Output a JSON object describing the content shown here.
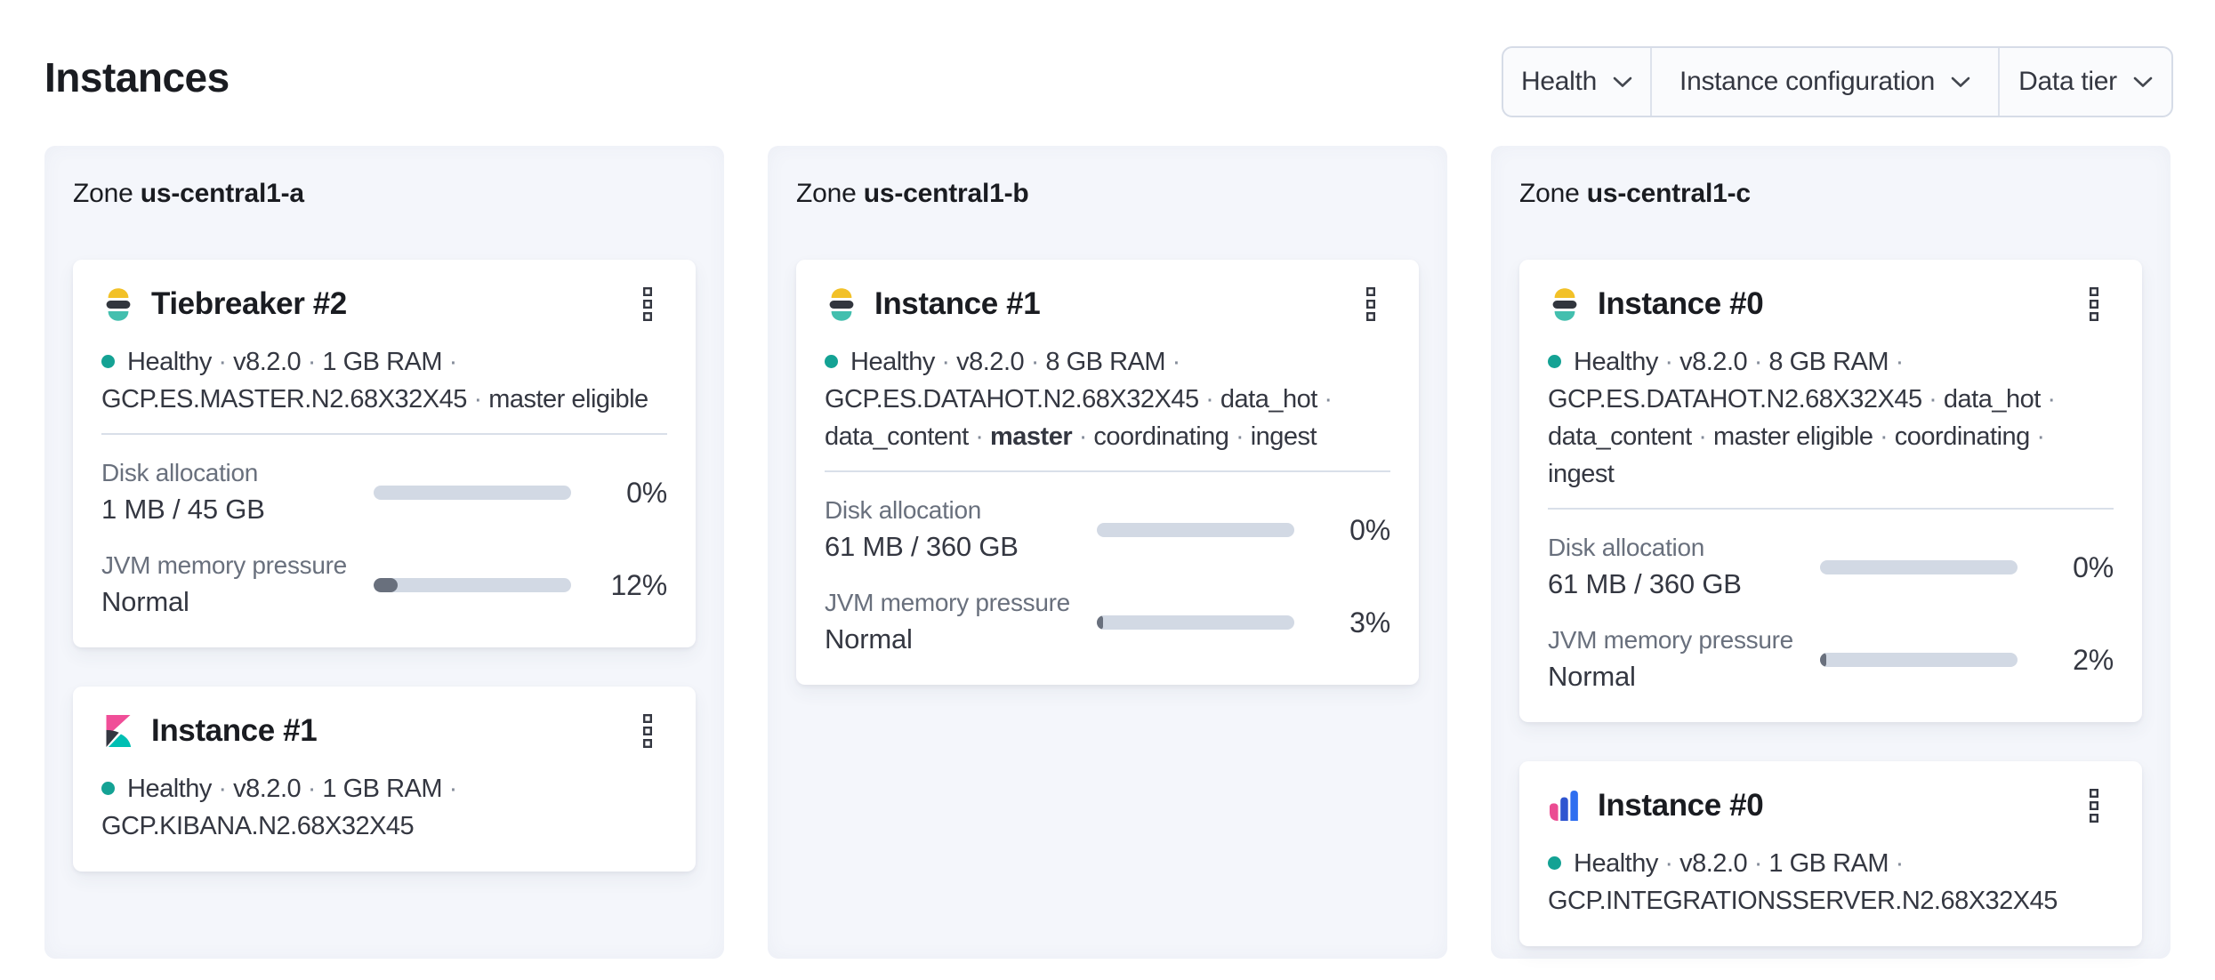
{
  "page": {
    "title": "Instances"
  },
  "ui": {
    "separator": "·"
  },
  "colors": {
    "healthy_dot": "#14a294",
    "bar_track": "#d2d9e4",
    "bar_fill": "#69707d",
    "panel_background": "#f4f6fb",
    "elastic_yellow": "#f2c128",
    "elastic_dark": "#32363e",
    "elastic_teal": "#43bfae",
    "kibana_pink": "#f04e98",
    "integrations_blue": "#2e6ef0"
  },
  "filters": {
    "items": [
      {
        "label": "Health"
      },
      {
        "label": "Instance configuration"
      },
      {
        "label": "Data tier"
      }
    ]
  },
  "zones": [
    {
      "zone_label": "Zone",
      "zone_name": "us-central1-a",
      "instances": [
        {
          "title": "Tiebreaker #2",
          "product": "elasticsearch",
          "health": "Healthy",
          "tags": [
            "v8.2.0",
            "1 GB RAM",
            "GCP.ES.MASTER.N2.68X32X45",
            "master eligible"
          ],
          "metrics": {
            "disk": {
              "label": "Disk allocation",
              "value": "1 MB / 45 GB",
              "percent": 0,
              "percent_label": "0%"
            },
            "jvm": {
              "label": "JVM memory pressure",
              "value": "Normal",
              "percent": 12,
              "percent_label": "12%"
            }
          }
        },
        {
          "title": "Instance #1",
          "product": "kibana",
          "health": "Healthy",
          "tags": [
            "v8.2.0",
            "1 GB RAM",
            "GCP.KIBANA.N2.68X32X45"
          ]
        }
      ]
    },
    {
      "zone_label": "Zone",
      "zone_name": "us-central1-b",
      "instances": [
        {
          "title": "Instance #1",
          "product": "elasticsearch",
          "health": "Healthy",
          "tags": [
            "v8.2.0",
            "8 GB RAM",
            "GCP.ES.DATAHOT.N2.68X32X45",
            "data_hot",
            "data_content",
            "master",
            "coordinating",
            "ingest"
          ],
          "metrics": {
            "disk": {
              "label": "Disk allocation",
              "value": "61 MB / 360 GB",
              "percent": 0,
              "percent_label": "0%"
            },
            "jvm": {
              "label": "JVM memory pressure",
              "value": "Normal",
              "percent": 3,
              "percent_label": "3%"
            }
          }
        }
      ]
    },
    {
      "zone_label": "Zone",
      "zone_name": "us-central1-c",
      "instances": [
        {
          "title": "Instance #0",
          "product": "elasticsearch",
          "health": "Healthy",
          "tags": [
            "v8.2.0",
            "8 GB RAM",
            "GCP.ES.DATAHOT.N2.68X32X45",
            "data_hot",
            "data_content",
            "master eligible",
            "coordinating",
            "ingest"
          ],
          "metrics": {
            "disk": {
              "label": "Disk allocation",
              "value": "61 MB / 360 GB",
              "percent": 0,
              "percent_label": "0%"
            },
            "jvm": {
              "label": "JVM memory pressure",
              "value": "Normal",
              "percent": 2,
              "percent_label": "2%"
            }
          }
        },
        {
          "title": "Instance #0",
          "product": "integrations_server",
          "health": "Healthy",
          "tags": [
            "v8.2.0",
            "1 GB RAM",
            "GCP.INTEGRATIONSSERVER.N2.68X32X45"
          ]
        }
      ]
    }
  ]
}
